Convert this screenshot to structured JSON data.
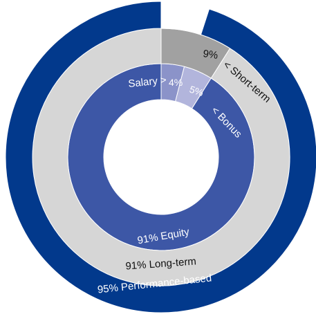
{
  "chart_data": {
    "type": "donut",
    "rings": [
      {
        "segments": [
          {
            "value": 4,
            "label": "4%",
            "color": "#8b93c9"
          },
          {
            "value": 5,
            "label": "5%",
            "color": "#b2b5dc"
          },
          {
            "value": 91,
            "label": "91% Equity",
            "color": "#3d57a6"
          }
        ],
        "annotations": [
          "Salary >",
          "< Bonus"
        ]
      },
      {
        "segments": [
          {
            "value": 9,
            "label": "9%",
            "color": "#a1a1a1"
          },
          {
            "value": 91,
            "label": "91% Long-term",
            "color": "#d6d6d6"
          }
        ],
        "annotations": [
          "< Short-term"
        ]
      },
      {
        "segments": [
          {
            "value": 5,
            "label": "",
            "color": "#ffffff"
          },
          {
            "value": 95,
            "label": "95% Performance-based",
            "color": "#02398c"
          }
        ]
      }
    ]
  }
}
